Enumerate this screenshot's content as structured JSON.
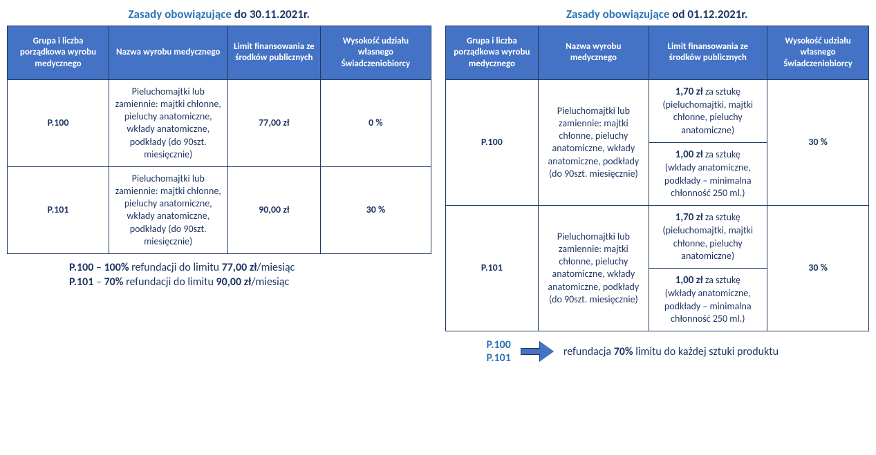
{
  "colors": {
    "header_bg": "#4472c4",
    "header_text": "#ffffff",
    "border": "#1f3864",
    "body_text": "#1f3864",
    "accent_blue": "#2e75b6",
    "background": "#ffffff"
  },
  "left": {
    "title_hl": "Zasady obowiązujące",
    "title_dk": " do 30.11.2021r.",
    "headers": {
      "col1": "Grupa i liczba porządkowa wyrobu medycznego",
      "col2": "Nazwa wyrobu medycznego",
      "col3": "Limit finansowania ze środków publicznych",
      "col4": "Wysokość udziału własnego Świadczeniobiorcy"
    },
    "rows": [
      {
        "code": "P.100",
        "desc": "Pieluchomajtki lub zamiennie: majtki chłonne, pieluchy anatomiczne, wkłady anatomiczne, podkłady (do 90szt. miesięcznie)",
        "limit": "77,00 zł",
        "share": "0 %"
      },
      {
        "code": "P.101",
        "desc": "Pieluchomajtki lub zamiennie: majtki chłonne, pieluchy anatomiczne, wkłady anatomiczne, podkłady (do 90szt. miesięcznie)",
        "limit": "90,00 zł",
        "share": "30 %"
      }
    ],
    "footer": {
      "line1_a": "P.100",
      "line1_b": " – ",
      "line1_c": "100%",
      "line1_d": " refundacji do limitu ",
      "line1_e": "77,00 zł",
      "line1_f": "/miesiąc",
      "line2_a": "P.101",
      "line2_b": " – ",
      "line2_c": "70%",
      "line2_d": " refundacji do limitu ",
      "line2_e": "90,00 zł",
      "line2_f": "/miesiąc"
    }
  },
  "right": {
    "title_hl": "Zasady obowiązujące",
    "title_dk": " od 01.12.2021r.",
    "headers": {
      "col1": "Grupa i liczba porządkowa wyrobu medycznego",
      "col2": "Nazwa wyrobu medycznego",
      "col3": "Limit finansowania ze środków publicznych",
      "col4": "Wysokość udziału własnego Świadczeniobiorcy"
    },
    "rows": [
      {
        "code": "P.100",
        "desc": "Pieluchomajtki lub zamiennie: majtki chłonne, pieluchy anatomiczne, wkłady anatomiczne, podkłady (do 90szt. miesięcznie)",
        "limit_a_bold": "1,70 zł",
        "limit_a_tail": " za sztukę",
        "limit_a_sub": "(pieluchomajtki, majtki chłonne, pieluchy anatomiczne)",
        "limit_b_bold": "1,00 zł",
        "limit_b_tail": " za sztukę",
        "limit_b_sub": "(wkłady anatomiczne, podkłady – minimalna chłonność 250 ml.)",
        "share": "30 %"
      },
      {
        "code": "P.101",
        "desc": "Pieluchomajtki lub zamiennie: majtki chłonne, pieluchy anatomiczne, wkłady anatomiczne, podkłady (do 90szt. miesięcznie)",
        "limit_a_bold": "1,70 zł",
        "limit_a_tail": " za sztukę",
        "limit_a_sub": "(pieluchomajtki, majtki chłonne, pieluchy anatomiczne)",
        "limit_b_bold": "1,00 zł",
        "limit_b_tail": " za sztukę",
        "limit_b_sub": "(wkłady anatomiczne, podkłady – minimalna chłonność 250 ml.)",
        "share": "30 %"
      }
    ],
    "footer": {
      "code1": "P.100",
      "code2": "P.101",
      "text_a": "refundacja ",
      "text_b": "70%",
      "text_c": " limitu do każdej sztuki produktu"
    }
  }
}
